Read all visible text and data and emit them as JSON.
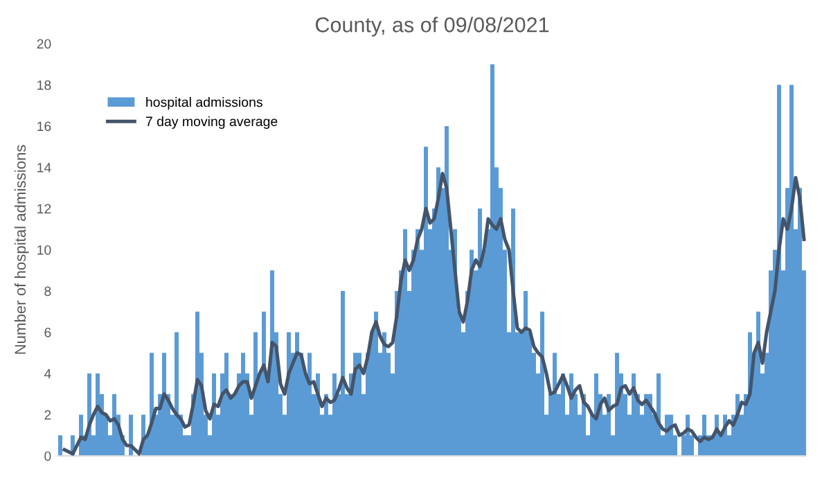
{
  "chart_data": {
    "type": "bar",
    "title": "County, as of 09/08/2021",
    "ylabel": "Number of hospital admissions",
    "categories": [
      null,
      null,
      null,
      null,
      null,
      null,
      null,
      null,
      null,
      null,
      null,
      null,
      null,
      null,
      null,
      null,
      null,
      null,
      null,
      null,
      null,
      null,
      null,
      null,
      null,
      null,
      null,
      null,
      null,
      null,
      null,
      null,
      null,
      null,
      null,
      null,
      null,
      null,
      null,
      null,
      null,
      null,
      null,
      null,
      null,
      null,
      null,
      null,
      null,
      null,
      null,
      null,
      null,
      null,
      null,
      null,
      null,
      null,
      null,
      null,
      null,
      null,
      null,
      null,
      null,
      null,
      null,
      null,
      null,
      null,
      null,
      null,
      null,
      null,
      null,
      null,
      null,
      null,
      null,
      null,
      null,
      null,
      null,
      null,
      null,
      null,
      null,
      null,
      null,
      null,
      null,
      null,
      null,
      null,
      null,
      null,
      null,
      null,
      null,
      null,
      null,
      null,
      null,
      null,
      null,
      null,
      null,
      null,
      null,
      null,
      null,
      null,
      null,
      null,
      null,
      null,
      null,
      null,
      null,
      null,
      null,
      null,
      null,
      null,
      null,
      null,
      null,
      null,
      null,
      null,
      null,
      null,
      null,
      null,
      null,
      null,
      null,
      null,
      null,
      null,
      null,
      null,
      null,
      null,
      null,
      null,
      null,
      null,
      null,
      null,
      null,
      null,
      null,
      null,
      null,
      null,
      null,
      null,
      null,
      null,
      null,
      null,
      null,
      null,
      null,
      null,
      null,
      null,
      null,
      null,
      null,
      null,
      null,
      null,
      null,
      null,
      null,
      null,
      null,
      null
    ],
    "series": [
      {
        "name": "hospital admissions",
        "color": "#5b9bd5",
        "values": [
          1,
          0,
          0,
          1,
          0,
          2,
          1,
          4,
          1,
          4,
          3,
          2,
          1,
          3,
          2,
          1,
          0,
          2,
          0,
          0,
          2,
          1,
          5,
          2,
          3,
          5,
          3,
          2,
          6,
          2,
          1,
          1,
          3,
          7,
          5,
          2,
          1,
          4,
          2,
          4,
          5,
          3,
          3,
          4,
          5,
          4,
          2,
          6,
          4,
          7,
          4,
          9,
          6,
          3,
          2,
          6,
          5,
          6,
          5,
          4,
          5,
          3,
          4,
          2,
          3,
          2,
          4,
          3,
          8,
          3,
          4,
          5,
          5,
          3,
          5,
          6,
          7,
          5,
          6,
          5,
          4,
          8,
          9,
          11,
          8,
          10,
          11,
          10,
          15,
          11,
          12,
          14,
          13,
          16,
          10,
          11,
          7,
          6,
          8,
          10,
          9,
          12,
          10,
          11,
          19,
          14,
          13,
          10,
          6,
          12,
          6,
          6,
          8,
          6,
          5,
          4,
          7,
          2,
          3,
          5,
          3,
          4,
          2,
          4,
          3,
          2,
          3,
          1,
          2,
          4,
          3,
          2,
          3,
          1,
          5,
          4,
          3,
          2,
          4,
          3,
          2,
          3,
          3,
          2,
          4,
          1,
          2,
          2,
          1,
          0,
          1,
          2,
          1,
          0,
          1,
          2,
          1,
          1,
          2,
          1,
          2,
          1,
          2,
          3,
          2,
          3,
          6,
          5,
          7,
          4,
          5,
          9,
          10,
          18,
          9,
          13,
          18,
          11,
          13,
          9
        ]
      },
      {
        "name": "7 day moving average",
        "type": "line",
        "color": "#44546a",
        "values": [
          null,
          0.3,
          0.2,
          0.1,
          0.5,
          0.9,
          0.8,
          1.5,
          2.0,
          2.4,
          2.1,
          2.0,
          1.7,
          1.8,
          1.5,
          0.8,
          0.5,
          0.5,
          0.3,
          0.1,
          0.8,
          1.0,
          1.6,
          2.3,
          2.3,
          3.0,
          2.7,
          2.3,
          2.0,
          1.8,
          1.4,
          1.5,
          2.5,
          3.7,
          3.4,
          2.2,
          1.8,
          2.5,
          2.4,
          3.0,
          3.2,
          2.8,
          3.0,
          3.4,
          3.6,
          3.6,
          2.8,
          3.4,
          4.0,
          4.4,
          3.6,
          5.5,
          5.3,
          3.5,
          3.0,
          4.0,
          4.5,
          5.0,
          4.9,
          4.0,
          3.5,
          3.6,
          3.0,
          2.4,
          2.8,
          2.6,
          2.7,
          3.2,
          3.8,
          3.3,
          3.0,
          4.2,
          4.4,
          4.0,
          4.8,
          6.0,
          6.5,
          5.8,
          5.4,
          5.3,
          5.5,
          6.8,
          8.5,
          9.5,
          9.0,
          9.5,
          10.5,
          11.0,
          12.0,
          11.3,
          11.5,
          12.5,
          13.7,
          13.0,
          11.0,
          9.0,
          7.0,
          6.5,
          7.5,
          9.0,
          9.5,
          9.2,
          10.0,
          11.5,
          11.2,
          11.0,
          11.5,
          10.5,
          10.0,
          8.0,
          6.2,
          6.0,
          6.2,
          6.1,
          5.3,
          5.0,
          4.8,
          4.0,
          3.0,
          3.1,
          3.5,
          3.9,
          3.4,
          2.8,
          3.2,
          3.4,
          2.6,
          2.4,
          2.0,
          1.8,
          2.5,
          2.8,
          2.2,
          2.4,
          2.5,
          3.3,
          3.4,
          3.0,
          3.3,
          2.7,
          2.5,
          2.7,
          2.4,
          2.1,
          1.6,
          1.3,
          1.2,
          1.4,
          1.5,
          1.0,
          1.1,
          1.3,
          1.2,
          0.9,
          0.7,
          0.9,
          0.8,
          0.9,
          1.3,
          1.0,
          1.4,
          1.7,
          1.5,
          2.0,
          2.6,
          2.5,
          3.0,
          5.0,
          5.5,
          4.5,
          6.0,
          7.0,
          8.0,
          10.0,
          11.5,
          11.0,
          12.0,
          13.5,
          12.5,
          10.5
        ]
      }
    ],
    "ylim": [
      0,
      20
    ],
    "yticks": [
      0,
      2,
      4,
      6,
      8,
      10,
      12,
      14,
      16,
      18,
      20
    ],
    "grid": false,
    "legend": "top left"
  }
}
